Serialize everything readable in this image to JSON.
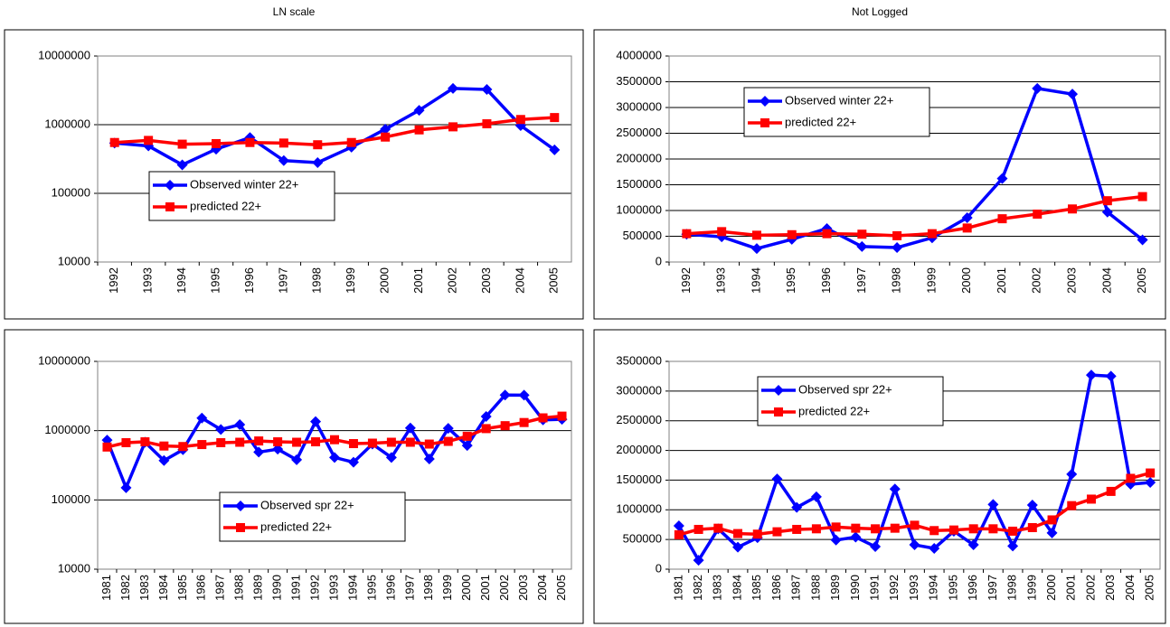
{
  "column_titles": [
    "LN scale",
    "Not Logged"
  ],
  "chart_data": [
    {
      "type": "line",
      "log_scale": true,
      "grid": true,
      "categories": [
        "1992",
        "1993",
        "1994",
        "1995",
        "1996",
        "1997",
        "1998",
        "1999",
        "2000",
        "2001",
        "2002",
        "2003",
        "2004",
        "2005"
      ],
      "ylim": [
        10000,
        10000000
      ],
      "yticks": [
        10000,
        100000,
        1000000,
        10000000
      ],
      "series": [
        {
          "name": "Observed winter 22+",
          "color": "#0000ff",
          "marker": "diamond",
          "values": [
            540000,
            490000,
            260000,
            440000,
            650000,
            300000,
            280000,
            470000,
            860000,
            1620000,
            3370000,
            3260000,
            970000,
            430000
          ]
        },
        {
          "name": "predicted 22+",
          "color": "#ff0000",
          "marker": "square",
          "values": [
            550000,
            590000,
            520000,
            530000,
            550000,
            540000,
            510000,
            550000,
            660000,
            840000,
            930000,
            1030000,
            1190000,
            1270000
          ]
        }
      ]
    },
    {
      "type": "line",
      "log_scale": false,
      "grid": true,
      "categories": [
        "1992",
        "1993",
        "1994",
        "1995",
        "1996",
        "1997",
        "1998",
        "1999",
        "2000",
        "2001",
        "2002",
        "2003",
        "2004",
        "2005"
      ],
      "ylim": [
        0,
        4000000
      ],
      "yticks": [
        0,
        500000,
        1000000,
        1500000,
        2000000,
        2500000,
        3000000,
        3500000,
        4000000
      ],
      "series": [
        {
          "name": "Observed winter 22+",
          "color": "#0000ff",
          "marker": "diamond",
          "values": [
            540000,
            490000,
            260000,
            440000,
            650000,
            300000,
            280000,
            470000,
            860000,
            1620000,
            3370000,
            3260000,
            970000,
            430000
          ]
        },
        {
          "name": "predicted 22+",
          "color": "#ff0000",
          "marker": "square",
          "values": [
            550000,
            590000,
            520000,
            530000,
            550000,
            540000,
            510000,
            550000,
            660000,
            840000,
            930000,
            1030000,
            1190000,
            1270000
          ]
        }
      ]
    },
    {
      "type": "line",
      "log_scale": true,
      "grid": true,
      "categories": [
        "1981",
        "1982",
        "1983",
        "1984",
        "1985",
        "1986",
        "1987",
        "1988",
        "1989",
        "1990",
        "1991",
        "1992",
        "1993",
        "1994",
        "1995",
        "1996",
        "1997",
        "1998",
        "1999",
        "2000",
        "2001",
        "2002",
        "2003",
        "2004",
        "2005"
      ],
      "ylim": [
        10000,
        10000000
      ],
      "yticks": [
        10000,
        100000,
        1000000,
        10000000
      ],
      "series": [
        {
          "name": "Observed spr 22+",
          "color": "#0000ff",
          "marker": "diamond",
          "values": [
            730000,
            150000,
            680000,
            370000,
            530000,
            1520000,
            1040000,
            1220000,
            490000,
            540000,
            380000,
            1350000,
            410000,
            350000,
            640000,
            410000,
            1090000,
            390000,
            1080000,
            610000,
            1600000,
            3270000,
            3250000,
            1430000,
            1460000
          ]
        },
        {
          "name": "predicted 22+",
          "color": "#ff0000",
          "marker": "square",
          "values": [
            580000,
            670000,
            690000,
            600000,
            590000,
            630000,
            670000,
            680000,
            710000,
            690000,
            680000,
            690000,
            740000,
            650000,
            660000,
            680000,
            680000,
            640000,
            700000,
            830000,
            1070000,
            1180000,
            1310000,
            1530000,
            1620000
          ]
        }
      ]
    },
    {
      "type": "line",
      "log_scale": false,
      "grid": true,
      "categories": [
        "1981",
        "1982",
        "1983",
        "1984",
        "1985",
        "1986",
        "1987",
        "1988",
        "1989",
        "1990",
        "1991",
        "1992",
        "1993",
        "1994",
        "1995",
        "1996",
        "1997",
        "1998",
        "1999",
        "2000",
        "2001",
        "2002",
        "2003",
        "2004",
        "2005"
      ],
      "ylim": [
        0,
        3500000
      ],
      "yticks": [
        0,
        500000,
        1000000,
        1500000,
        2000000,
        2500000,
        3000000,
        3500000
      ],
      "series": [
        {
          "name": "Observed spr 22+",
          "color": "#0000ff",
          "marker": "diamond",
          "values": [
            730000,
            150000,
            680000,
            370000,
            530000,
            1520000,
            1040000,
            1220000,
            490000,
            540000,
            380000,
            1350000,
            410000,
            350000,
            640000,
            410000,
            1090000,
            390000,
            1080000,
            610000,
            1600000,
            3270000,
            3250000,
            1430000,
            1460000
          ]
        },
        {
          "name": "predicted 22+",
          "color": "#ff0000",
          "marker": "square",
          "values": [
            580000,
            670000,
            690000,
            600000,
            590000,
            630000,
            670000,
            680000,
            710000,
            690000,
            680000,
            690000,
            740000,
            650000,
            660000,
            680000,
            680000,
            640000,
            700000,
            830000,
            1070000,
            1180000,
            1310000,
            1530000,
            1620000
          ]
        }
      ]
    }
  ]
}
